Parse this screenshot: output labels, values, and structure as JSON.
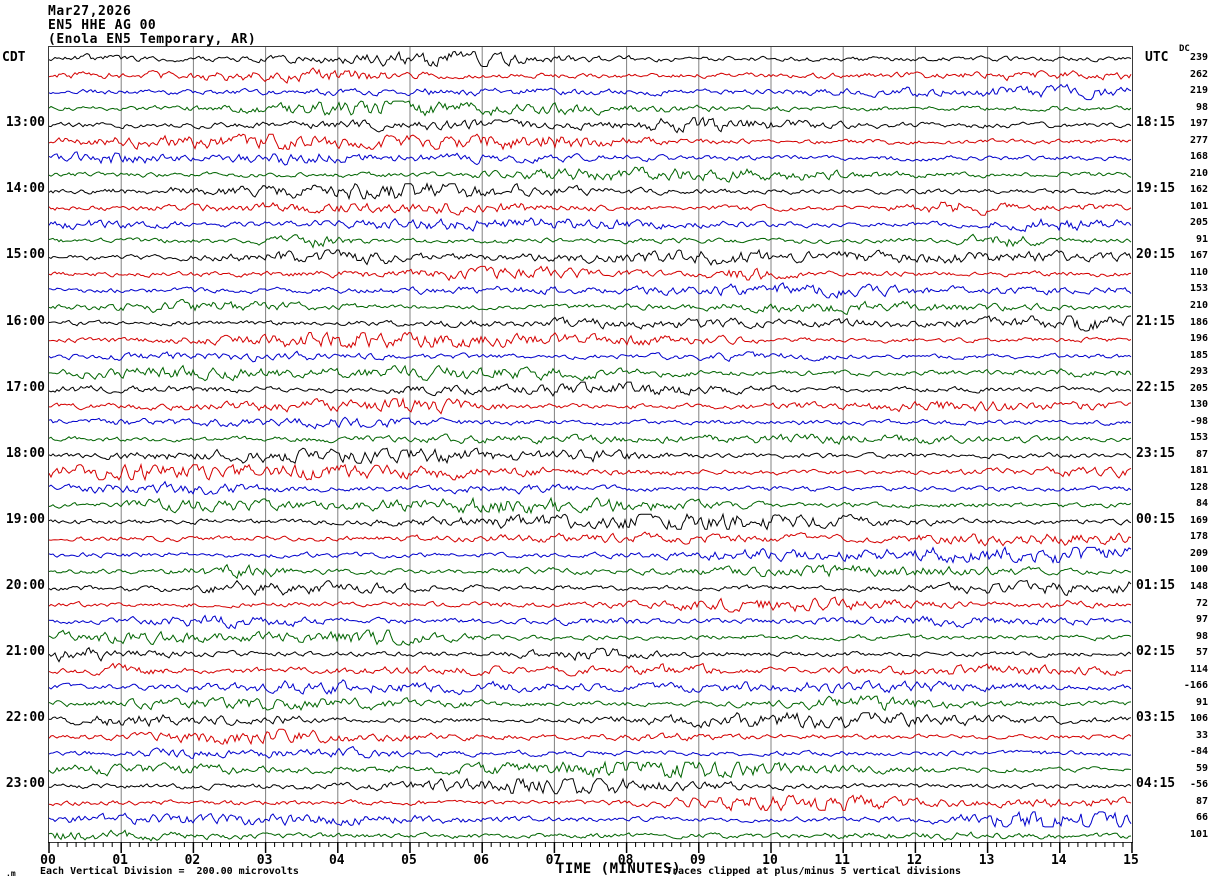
{
  "header": {
    "date": "Mar27,2026",
    "station": "EN5 HHE AG 00",
    "location": "(Enola EN5 Temporary, AR)"
  },
  "axes": {
    "left_timezone": "CDT",
    "right_timezone": "UTC",
    "dc_header": "DC",
    "x_title": "TIME (MINUTES)",
    "x_ticks": [
      "00",
      "01",
      "02",
      "03",
      "04",
      "05",
      "06",
      "07",
      "08",
      "09",
      "10",
      "11",
      "12",
      "13",
      "14",
      "15"
    ]
  },
  "footer": {
    "scale_note": "Each Vertical Division =  200.00 microvolts",
    "clip_note": "Traces clipped at plus/minus 5 vertical divisions",
    "corner_mark": ".m"
  },
  "colors": {
    "black": "#000000",
    "red": "#d40000",
    "blue": "#0000cc",
    "green": "#006400",
    "grid": "#808080",
    "frame": "#3a3a3a"
  },
  "chart_data": {
    "type": "line",
    "subtype": "helicorder-seismogram",
    "title": "Mar27,2026 EN5 HHE AG 00 (Enola EN5 Temporary, AR)",
    "xlabel": "TIME (MINUTES)",
    "x_range_minutes": [
      0,
      15
    ],
    "minutes_per_row": 15,
    "row_order_colors": [
      "black",
      "red",
      "blue",
      "green"
    ],
    "scale_note": "Each Vertical Division =  200.00 microvolts",
    "clip_note": "Traces clipped at plus/minus 5 vertical divisions",
    "waveform_note": "continuous microseismic background noise, peak amplitude about 1 vertical division with intermittent small bursts; reproduced as seeded pseudo-random noise",
    "rows": [
      {
        "color": "black",
        "dc": 239,
        "cdt": "",
        "utc": ""
      },
      {
        "color": "red",
        "dc": 262,
        "cdt": "",
        "utc": ""
      },
      {
        "color": "blue",
        "dc": 219,
        "cdt": "",
        "utc": ""
      },
      {
        "color": "green",
        "dc": 98,
        "cdt": "",
        "utc": ""
      },
      {
        "color": "black",
        "dc": 197,
        "cdt": "13:00",
        "utc": "18:15"
      },
      {
        "color": "red",
        "dc": 277,
        "cdt": "",
        "utc": ""
      },
      {
        "color": "blue",
        "dc": 168,
        "cdt": "",
        "utc": ""
      },
      {
        "color": "green",
        "dc": 210,
        "cdt": "",
        "utc": ""
      },
      {
        "color": "black",
        "dc": 162,
        "cdt": "14:00",
        "utc": "19:15"
      },
      {
        "color": "red",
        "dc": 101,
        "cdt": "",
        "utc": ""
      },
      {
        "color": "blue",
        "dc": 205,
        "cdt": "",
        "utc": ""
      },
      {
        "color": "green",
        "dc": 91,
        "cdt": "",
        "utc": ""
      },
      {
        "color": "black",
        "dc": 167,
        "cdt": "15:00",
        "utc": "20:15"
      },
      {
        "color": "red",
        "dc": 110,
        "cdt": "",
        "utc": ""
      },
      {
        "color": "blue",
        "dc": 153,
        "cdt": "",
        "utc": ""
      },
      {
        "color": "green",
        "dc": 210,
        "cdt": "",
        "utc": ""
      },
      {
        "color": "black",
        "dc": 186,
        "cdt": "16:00",
        "utc": "21:15"
      },
      {
        "color": "red",
        "dc": 196,
        "cdt": "",
        "utc": ""
      },
      {
        "color": "blue",
        "dc": 185,
        "cdt": "",
        "utc": ""
      },
      {
        "color": "green",
        "dc": 293,
        "cdt": "",
        "utc": ""
      },
      {
        "color": "black",
        "dc": 205,
        "cdt": "17:00",
        "utc": "22:15"
      },
      {
        "color": "red",
        "dc": 130,
        "cdt": "",
        "utc": ""
      },
      {
        "color": "blue",
        "dc": -98,
        "cdt": "",
        "utc": ""
      },
      {
        "color": "green",
        "dc": 153,
        "cdt": "",
        "utc": ""
      },
      {
        "color": "black",
        "dc": 87,
        "cdt": "18:00",
        "utc": "23:15"
      },
      {
        "color": "red",
        "dc": 181,
        "cdt": "",
        "utc": ""
      },
      {
        "color": "blue",
        "dc": 128,
        "cdt": "",
        "utc": ""
      },
      {
        "color": "green",
        "dc": 84,
        "cdt": "",
        "utc": ""
      },
      {
        "color": "black",
        "dc": 169,
        "cdt": "19:00",
        "utc": "00:15"
      },
      {
        "color": "red",
        "dc": 178,
        "cdt": "",
        "utc": ""
      },
      {
        "color": "blue",
        "dc": 209,
        "cdt": "",
        "utc": ""
      },
      {
        "color": "green",
        "dc": 100,
        "cdt": "",
        "utc": ""
      },
      {
        "color": "black",
        "dc": 148,
        "cdt": "20:00",
        "utc": "01:15"
      },
      {
        "color": "red",
        "dc": 72,
        "cdt": "",
        "utc": ""
      },
      {
        "color": "blue",
        "dc": 97,
        "cdt": "",
        "utc": ""
      },
      {
        "color": "green",
        "dc": 98,
        "cdt": "",
        "utc": ""
      },
      {
        "color": "black",
        "dc": 57,
        "cdt": "21:00",
        "utc": "02:15"
      },
      {
        "color": "red",
        "dc": 114,
        "cdt": "",
        "utc": ""
      },
      {
        "color": "blue",
        "dc": -166,
        "cdt": "",
        "utc": ""
      },
      {
        "color": "green",
        "dc": 91,
        "cdt": "",
        "utc": ""
      },
      {
        "color": "black",
        "dc": 106,
        "cdt": "22:00",
        "utc": "03:15"
      },
      {
        "color": "red",
        "dc": 33,
        "cdt": "",
        "utc": ""
      },
      {
        "color": "blue",
        "dc": -84,
        "cdt": "",
        "utc": ""
      },
      {
        "color": "green",
        "dc": 59,
        "cdt": "",
        "utc": ""
      },
      {
        "color": "black",
        "dc": -56,
        "cdt": "23:00",
        "utc": "04:15"
      },
      {
        "color": "red",
        "dc": 87,
        "cdt": "",
        "utc": ""
      },
      {
        "color": "blue",
        "dc": 66,
        "cdt": "",
        "utc": ""
      },
      {
        "color": "green",
        "dc": 101,
        "cdt": "",
        "utc": ""
      }
    ]
  }
}
